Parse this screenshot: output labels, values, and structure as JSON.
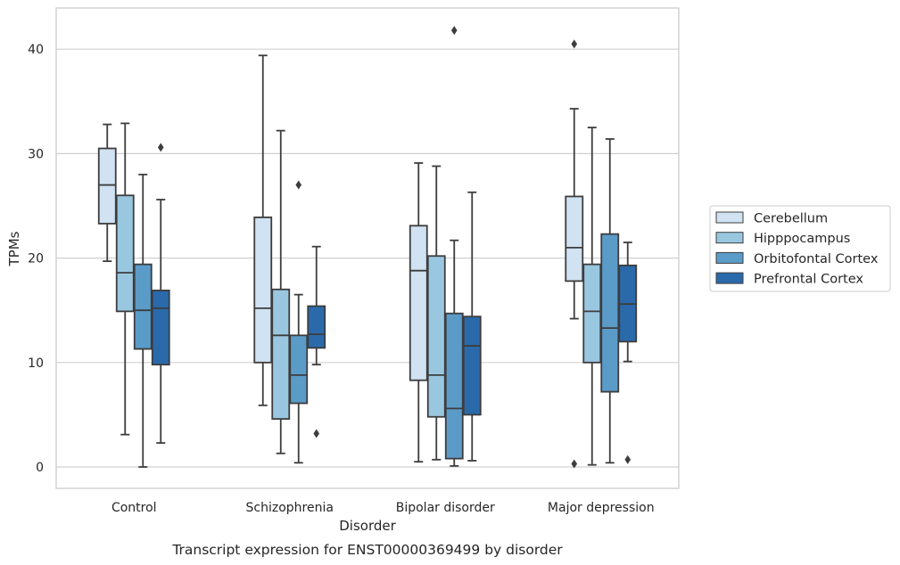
{
  "chart_data": {
    "type": "box",
    "xlabel": "Disorder",
    "ylabel": "TPMs",
    "caption": "Transcript expression for ENST00000369499 by disorder",
    "ylim": [
      -2,
      44
    ],
    "yticks": [
      0,
      10,
      20,
      30,
      40
    ],
    "grid": "horizontal",
    "legend_position": "right",
    "categories": [
      "Control",
      "Schizophrenia",
      "Bipolar disorder",
      "Major depression"
    ],
    "series": [
      {
        "name": "Cerebellum",
        "color": "#d1e2f2",
        "boxes": [
          {
            "whisker_low": 19.7,
            "q1": 23.3,
            "median": 27.0,
            "q3": 30.5,
            "whisker_high": 32.8,
            "outliers": []
          },
          {
            "whisker_low": 5.9,
            "q1": 10.0,
            "median": 15.2,
            "q3": 23.9,
            "whisker_high": 39.4,
            "outliers": []
          },
          {
            "whisker_low": 0.5,
            "q1": 8.3,
            "median": 18.8,
            "q3": 23.1,
            "whisker_high": 29.1,
            "outliers": []
          },
          {
            "whisker_low": 14.2,
            "q1": 17.8,
            "median": 21.0,
            "q3": 25.9,
            "whisker_high": 34.3,
            "outliers": [
              0.3,
              40.5
            ]
          }
        ]
      },
      {
        "name": "Hipppocampus",
        "color": "#9ac7e0",
        "boxes": [
          {
            "whisker_low": 3.1,
            "q1": 14.9,
            "median": 18.6,
            "q3": 26.0,
            "whisker_high": 32.9,
            "outliers": []
          },
          {
            "whisker_low": 1.3,
            "q1": 4.6,
            "median": 12.6,
            "q3": 17.0,
            "whisker_high": 32.2,
            "outliers": []
          },
          {
            "whisker_low": 0.7,
            "q1": 4.8,
            "median": 8.8,
            "q3": 20.2,
            "whisker_high": 28.8,
            "outliers": []
          },
          {
            "whisker_low": 0.2,
            "q1": 10.0,
            "median": 14.9,
            "q3": 19.4,
            "whisker_high": 32.5,
            "outliers": []
          }
        ]
      },
      {
        "name": "Orbitofontal Cortex",
        "color": "#5b9bc8",
        "boxes": [
          {
            "whisker_low": 0.0,
            "q1": 11.3,
            "median": 15.0,
            "q3": 19.4,
            "whisker_high": 28.0,
            "outliers": []
          },
          {
            "whisker_low": 0.4,
            "q1": 6.1,
            "median": 8.8,
            "q3": 12.6,
            "whisker_high": 16.5,
            "outliers": [
              27.0
            ]
          },
          {
            "whisker_low": 0.1,
            "q1": 0.8,
            "median": 5.6,
            "q3": 14.7,
            "whisker_high": 21.7,
            "outliers": [
              41.8
            ]
          },
          {
            "whisker_low": 0.4,
            "q1": 7.2,
            "median": 13.3,
            "q3": 22.3,
            "whisker_high": 31.4,
            "outliers": []
          }
        ]
      },
      {
        "name": "Prefrontal Cortex",
        "color": "#2a6aab",
        "boxes": [
          {
            "whisker_low": 2.3,
            "q1": 9.8,
            "median": 15.2,
            "q3": 16.9,
            "whisker_high": 25.6,
            "outliers": [
              30.6
            ]
          },
          {
            "whisker_low": 9.8,
            "q1": 11.4,
            "median": 12.7,
            "q3": 15.4,
            "whisker_high": 21.1,
            "outliers": [
              3.2
            ]
          },
          {
            "whisker_low": 0.6,
            "q1": 5.0,
            "median": 11.6,
            "q3": 14.4,
            "whisker_high": 26.3,
            "outliers": []
          },
          {
            "whisker_low": 10.1,
            "q1": 12.0,
            "median": 15.6,
            "q3": 19.3,
            "whisker_high": 21.5,
            "outliers": [
              0.7
            ]
          }
        ]
      }
    ]
  }
}
